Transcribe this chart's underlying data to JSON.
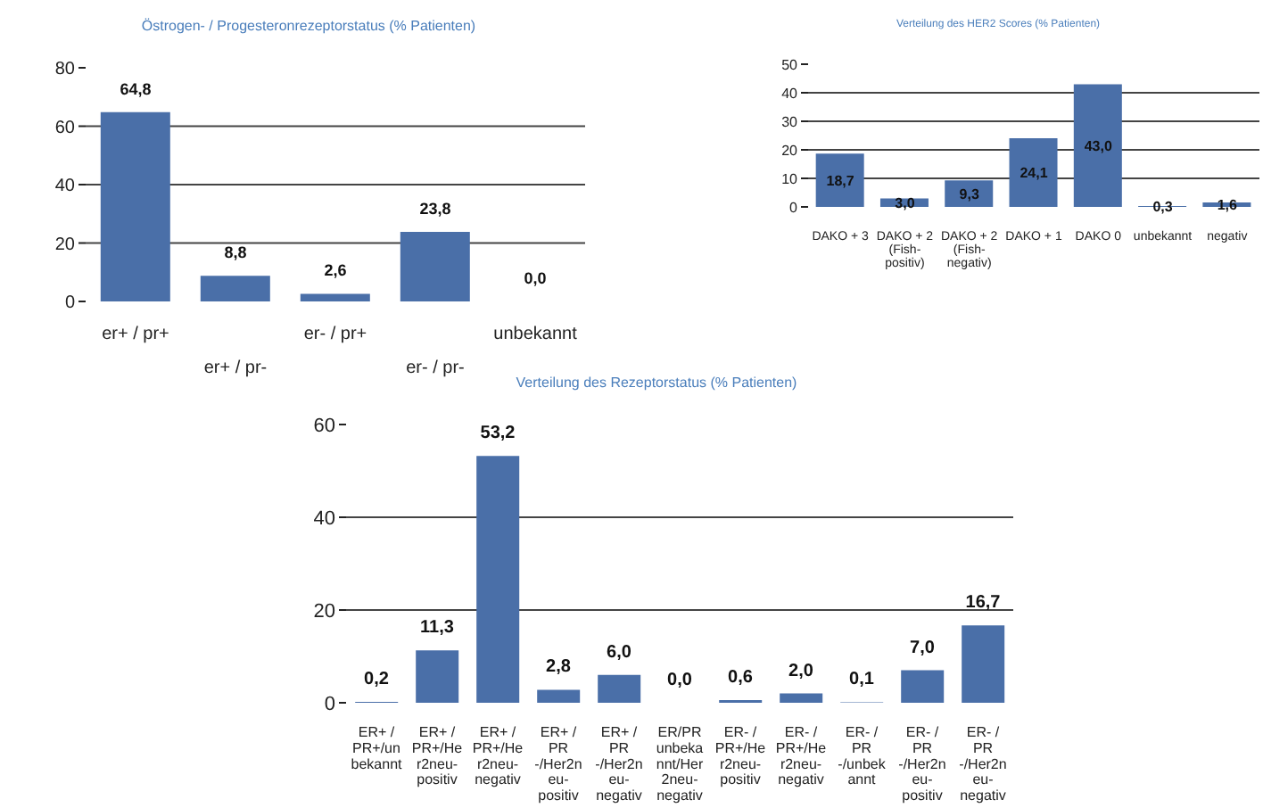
{
  "chart_data": [
    {
      "type": "bar",
      "title": "Östrogen- / Progesteronrezeptorstatus  (% Patienten)",
      "categories": [
        "er+ / pr+",
        "er+ / pr-",
        "er- / pr+",
        "er- / pr-",
        "unbekannt"
      ],
      "values": [
        64.8,
        8.8,
        2.6,
        23.8,
        0.0
      ],
      "value_labels": [
        "64,8",
        "8,8",
        "2,6",
        "23,8",
        "0,0"
      ],
      "color": "#4a6fa8",
      "ylim": [
        0,
        80
      ],
      "yticks": [
        0,
        20,
        40,
        60,
        80
      ],
      "grid": "y"
    },
    {
      "type": "bar",
      "title": "Verteilung des HER2 Scores (% Patienten)",
      "categories": [
        "DAKO + 3",
        "DAKO + 2\n(Fish-\npositiv)",
        "DAKO + 2\n(Fish-\nnegativ)",
        "DAKO + 1",
        "DAKO 0",
        "unbekannt",
        "negativ"
      ],
      "values": [
        18.7,
        3.0,
        9.3,
        24.1,
        43.0,
        0.3,
        1.6
      ],
      "value_labels": [
        "18,7",
        "3,0",
        "9,3",
        "24,1",
        "43,0",
        "0,3",
        "1,6"
      ],
      "color": "#4a6fa8",
      "ylim": [
        0,
        50
      ],
      "yticks": [
        0,
        10,
        20,
        30,
        40,
        50
      ],
      "grid": "y"
    },
    {
      "type": "bar",
      "title": "Verteilung des Rezeptorstatus (% Patienten)",
      "categories": [
        "ER+ /\nPR+/un\nbekannt",
        "ER+ /\nPR+/He\nr2neu-\npositiv",
        "ER+ /\nPR+/He\nr2neu-\nnegativ",
        "ER+ /\nPR\n-/Her2n\neu-\npositiv",
        "ER+ /\nPR\n-/Her2n\neu-\nnegativ",
        "ER/PR\nunbeka\nnnt/Her\n2neu-\nnegativ",
        "ER- /\nPR+/He\nr2neu-\npositiv",
        "ER- /\nPR+/He\nr2neu-\nnegativ",
        "ER- /\nPR\n-/unbek\nannt",
        "ER- /\nPR\n-/Her2n\neu-\npositiv",
        "ER- /\nPR\n-/Her2n\neu-\nnegativ"
      ],
      "values": [
        0.2,
        11.3,
        53.2,
        2.8,
        6.0,
        0.0,
        0.6,
        2.0,
        0.1,
        7.0,
        16.7
      ],
      "value_labels": [
        "0,2",
        "11,3",
        "53,2",
        "2,8",
        "6,0",
        "0,0",
        "0,6",
        "2,0",
        "0,1",
        "7,0",
        "16,7"
      ],
      "color": "#4a6fa8",
      "ylim": [
        0,
        60
      ],
      "yticks": [
        0,
        20,
        40,
        60
      ],
      "grid": "y"
    }
  ]
}
